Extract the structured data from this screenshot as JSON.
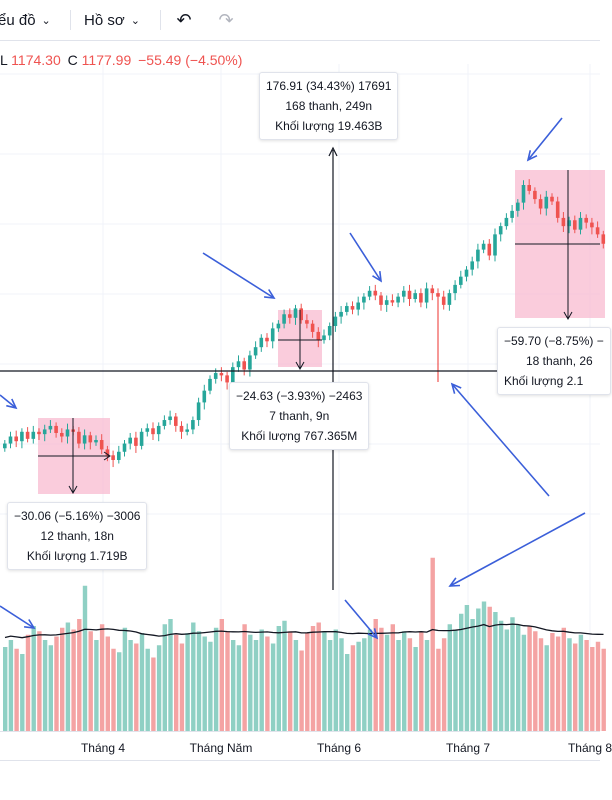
{
  "toolbar": {
    "chart_menu": "ểu đồ",
    "profile_menu": "Hồ sơ",
    "chevron": "⌄",
    "undo_icon": "↶",
    "redo_icon": "↷"
  },
  "ohlc": {
    "l_label": "L",
    "l_value": "1174.30",
    "c_label": "C",
    "c_value": "1177.99",
    "change": "−55.49 (−4.50%)"
  },
  "colors": {
    "up": "#26a69a",
    "down": "#ef5350",
    "vol_up": "#8fd0c4",
    "vol_down": "#f4a3a3",
    "measure_box": "#f8bbd0",
    "arrow": "#3b5fd9"
  },
  "measures": [
    {
      "line1": "176.91 (34.43%) 17691",
      "line2": "168 thanh, 249n",
      "line3": "Khối lượng 19.463B"
    },
    {
      "line1": "−24.63 (−3.93%) −2463",
      "line2": "7 thanh, 9n",
      "line3": "Khối lượng 767.365M"
    },
    {
      "line1": "−30.06 (−5.16%) −3006",
      "line2": "12 thanh, 18n",
      "line3": "Khối lượng 1.719B"
    },
    {
      "line1": "−59.70 (−8.75%) −",
      "line2": "18 thanh, 26",
      "line3": "Khối lượng 2.1"
    }
  ],
  "chart_data": {
    "type": "candlestick",
    "x_labels": [
      "Tháng 4",
      "Tháng Năm",
      "Tháng 6",
      "Tháng 7",
      "Tháng 8"
    ],
    "price_series": [
      1040,
      1046,
      1042,
      1050,
      1044,
      1050,
      1048,
      1052,
      1055,
      1049,
      1046,
      1052,
      1050,
      1040,
      1047,
      1041,
      1043,
      1035,
      1030,
      1026,
      1033,
      1040,
      1045,
      1038,
      1050,
      1053,
      1048,
      1055,
      1060,
      1063,
      1055,
      1050,
      1052,
      1060,
      1075,
      1085,
      1095,
      1100,
      1098,
      1092,
      1105,
      1110,
      1103,
      1115,
      1122,
      1130,
      1127,
      1138,
      1142,
      1150,
      1147,
      1155,
      1145,
      1142,
      1135,
      1128,
      1132,
      1140,
      1148,
      1152,
      1157,
      1154,
      1160,
      1165,
      1170,
      1166,
      1158,
      1162,
      1160,
      1165,
      1170,
      1163,
      1168,
      1160,
      1172,
      1168,
      1165,
      1158,
      1168,
      1175,
      1182,
      1188,
      1195,
      1205,
      1210,
      1200,
      1218,
      1225,
      1232,
      1238,
      1245,
      1260,
      1255,
      1248,
      1240,
      1250,
      1246,
      1232,
      1225,
      1230,
      1222,
      1232,
      1228,
      1224,
      1218,
      1210
    ],
    "volume_series": [
      48,
      52,
      47,
      44,
      55,
      60,
      57,
      52,
      49,
      54,
      59,
      62,
      58,
      64,
      83,
      57,
      52,
      61,
      54,
      47,
      45,
      59,
      52,
      50,
      56,
      47,
      42,
      49,
      61,
      64,
      55,
      50,
      56,
      62,
      57,
      54,
      51,
      59,
      64,
      57,
      52,
      49,
      61,
      55,
      52,
      58,
      54,
      50,
      60,
      63,
      57,
      52,
      46,
      56,
      60,
      62,
      57,
      52,
      58,
      53,
      44,
      49,
      51,
      53,
      58,
      64,
      59,
      55,
      61,
      52,
      57,
      53,
      48,
      57,
      52,
      99,
      47,
      53,
      61,
      58,
      67,
      72,
      64,
      70,
      74,
      71,
      68,
      63,
      58,
      65,
      61,
      55,
      60,
      57,
      53,
      49,
      56,
      54,
      59,
      53,
      50,
      55,
      52,
      48,
      51,
      47
    ],
    "volume_ma_level": 57,
    "annotations": [
      {
        "kind": "measure",
        "from_index": 47,
        "to_index": 160,
        "change": 176.91,
        "percent": 34.43,
        "bars": 168,
        "days": 249,
        "volume": "19.463B"
      },
      {
        "kind": "measure",
        "change": -24.63,
        "percent": -3.93,
        "bars": 7,
        "days": 9,
        "volume": "767.365M"
      },
      {
        "kind": "measure",
        "change": -30.06,
        "percent": -5.16,
        "bars": 12,
        "days": 18,
        "volume": "1.719B"
      },
      {
        "kind": "measure",
        "change": -59.7,
        "percent": -8.75,
        "bars": 18,
        "days": 26,
        "volume": "2.1"
      }
    ]
  }
}
